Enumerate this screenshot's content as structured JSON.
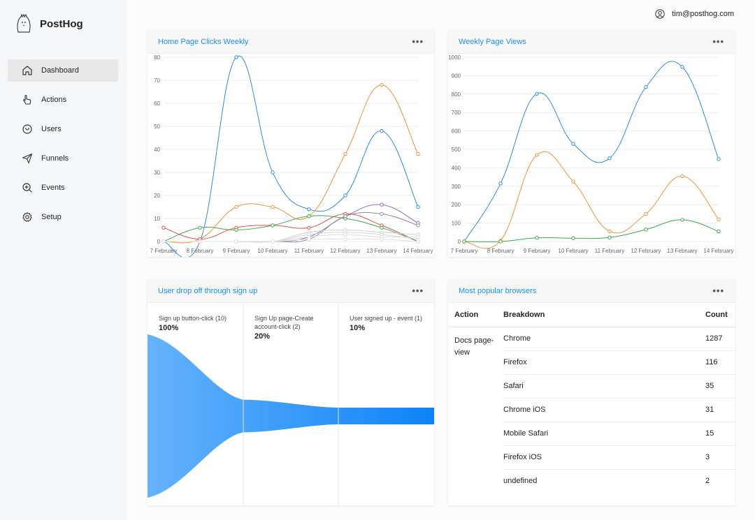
{
  "app": {
    "name": "PostHog",
    "user_email": "tim@posthog.com"
  },
  "sidebar": {
    "items": [
      {
        "label": "Dashboard",
        "icon": "home-icon",
        "active": true
      },
      {
        "label": "Actions",
        "icon": "pointer-icon"
      },
      {
        "label": "Users",
        "icon": "users-icon"
      },
      {
        "label": "Funnels",
        "icon": "send-icon"
      },
      {
        "label": "Events",
        "icon": "zoom-in-icon"
      },
      {
        "label": "Setup",
        "icon": "gear-icon"
      }
    ]
  },
  "cards": {
    "clicks": {
      "title": "Home Page Clicks Weekly",
      "menu": "•••"
    },
    "views": {
      "title": "Weekly Page Views",
      "menu": "•••"
    },
    "funnel": {
      "title": "User drop off through sign up",
      "menu": "•••"
    },
    "browsers": {
      "title": "Most popular browsers",
      "menu": "•••"
    }
  },
  "chart_data": [
    {
      "type": "line",
      "title": "Home Page Clicks Weekly",
      "x": [
        "7 February",
        "8 February",
        "9 February",
        "10 February",
        "11 February",
        "12 February",
        "13 February",
        "14 February"
      ],
      "ylim": [
        0,
        80
      ],
      "yticks": [
        0,
        10,
        20,
        30,
        40,
        50,
        60,
        70,
        80
      ],
      "grid": true,
      "series": [
        {
          "color": "#2a8ce6",
          "values": [
            0,
            0,
            80,
            30,
            14,
            20,
            48,
            15
          ]
        },
        {
          "color": "#f0923a",
          "values": [
            0,
            1,
            15,
            15,
            11,
            38,
            68,
            38
          ]
        },
        {
          "color": "#d9534f",
          "values": [
            6,
            1,
            6,
            7,
            6,
            12,
            7,
            0
          ]
        },
        {
          "color": "#3fa64a",
          "values": [
            0,
            6,
            5,
            7,
            11,
            10,
            6,
            0
          ]
        },
        {
          "color": "#9467bd",
          "values": [
            0,
            0,
            0,
            0,
            2,
            11,
            16,
            8
          ]
        },
        {
          "color": "#8c8c8c",
          "values": [
            0,
            0,
            0,
            0,
            1,
            11,
            12,
            7
          ]
        },
        {
          "color": "#cfcfcf",
          "values": [
            0,
            0,
            0,
            0,
            4,
            5,
            4,
            3
          ]
        },
        {
          "color": "#d6d6d6",
          "values": [
            0,
            0,
            0,
            0,
            3,
            4,
            3,
            1
          ]
        },
        {
          "color": "#dcdcdc",
          "values": [
            0,
            0,
            0,
            0,
            2,
            3,
            2,
            2
          ]
        },
        {
          "color": "#e0e0e0",
          "values": [
            0,
            0,
            0,
            0,
            1,
            1,
            1,
            0
          ]
        }
      ]
    },
    {
      "type": "line",
      "title": "Weekly Page Views",
      "x": [
        "7 February",
        "8 February",
        "9 February",
        "10 February",
        "11 February",
        "12 February",
        "13 February",
        "14 February"
      ],
      "ylim": [
        0,
        1000
      ],
      "yticks": [
        0,
        100,
        200,
        300,
        400,
        500,
        600,
        700,
        800,
        900,
        1000
      ],
      "grid": true,
      "series": [
        {
          "color": "#2a8ce6",
          "values": [
            0,
            315,
            802,
            530,
            452,
            838,
            948,
            447
          ]
        },
        {
          "color": "#f0923a",
          "values": [
            0,
            5,
            470,
            325,
            55,
            150,
            355,
            120
          ]
        },
        {
          "color": "#3fa64a",
          "values": [
            0,
            0,
            20,
            18,
            22,
            65,
            118,
            55
          ]
        }
      ]
    }
  ],
  "funnel": {
    "steps": [
      {
        "name": "Sign up button-click (10)",
        "pct": "100%",
        "value": 1.0
      },
      {
        "name": "Sign Up page-Create account-click (2)",
        "pct": "20%",
        "value": 0.2
      },
      {
        "name": "User signed up - event (1)",
        "pct": "10%",
        "value": 0.1
      }
    ]
  },
  "browsers": {
    "headers": {
      "action": "Action",
      "breakdown": "Breakdown",
      "count": "Count"
    },
    "action": "Docs page-view",
    "rows": [
      {
        "breakdown": "Chrome",
        "count": "1287"
      },
      {
        "breakdown": "Firefox",
        "count": "116"
      },
      {
        "breakdown": "Safari",
        "count": "35"
      },
      {
        "breakdown": "Chrome iOS",
        "count": "31"
      },
      {
        "breakdown": "Mobile Safari",
        "count": "15"
      },
      {
        "breakdown": "Firefox iOS",
        "count": "3"
      },
      {
        "breakdown": "undefined",
        "count": "2"
      }
    ]
  }
}
